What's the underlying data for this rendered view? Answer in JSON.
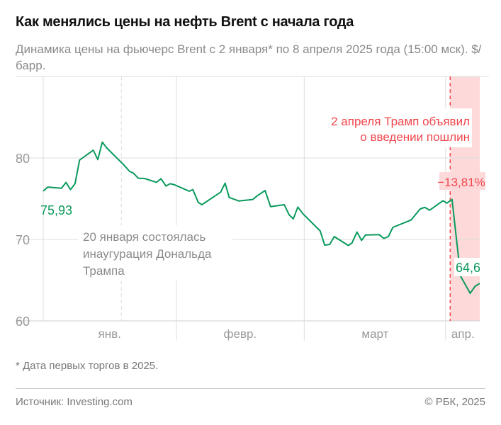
{
  "title": "Как менялись цены на нефть Brent с начала года",
  "subtitle": "Динамика цены на фьючерс Brent с 2 января* по 8 апреля 2025 года (15:00 мск). $/барр.",
  "footnote": "* Дата первых торгов в 2025.",
  "source": "Источник: Investing.com",
  "copyright": "© РБК, 2025",
  "colors": {
    "line": "#0a9a5c",
    "accent": "#f0474c",
    "highlight": "#fdd9d9",
    "grid": "#dddddd",
    "text": "#8a8a8a"
  },
  "chart_data": {
    "type": "line",
    "title": "Как менялись цены на нефть Brent с начала года",
    "xlabel": "",
    "ylabel": "$/барр.",
    "xlim": [
      0,
      96
    ],
    "ylim": [
      60,
      90
    ],
    "x_unit": "days since 2 January 2025",
    "yticks": [
      60,
      70,
      80
    ],
    "ytick_labels": [
      "60",
      "70",
      "80"
    ],
    "month_boundaries": [
      29.3,
      57.4,
      88.5
    ],
    "xtick_labels": [
      {
        "label": "янв.",
        "x": 14.6
      },
      {
        "label": "февр.",
        "x": 43.3
      },
      {
        "label": "март",
        "x": 73
      },
      {
        "label": "апр.",
        "x": 92.3
      }
    ],
    "grid": true,
    "series": [
      {
        "name": "Brent",
        "x": [
          0,
          1,
          4,
          5,
          6,
          7,
          8,
          11,
          12,
          13,
          14,
          17.7,
          19,
          19.8,
          20.9,
          22.3,
          24.9,
          25.9,
          27,
          27.9,
          28.9,
          32.1,
          32.9,
          34.1,
          34.9,
          39,
          40,
          40.9,
          43,
          46.1,
          47,
          48.8,
          50,
          53,
          54.1,
          55,
          56,
          57.1,
          60.9,
          61.9,
          63,
          64,
          67.1,
          67.9,
          69,
          70,
          70.9,
          73.9,
          74.9,
          75.9,
          76.9,
          80.9,
          82.9,
          83.9,
          85,
          87.9,
          88.8,
          89.9,
          91.8,
          93.9,
          95,
          96
        ],
        "y": [
          75.93,
          76.43,
          76.29,
          76.99,
          76.12,
          76.84,
          79.74,
          80.96,
          79.8,
          81.94,
          81.22,
          79.16,
          78.35,
          78.15,
          77.51,
          77.48,
          77.01,
          77.45,
          76.55,
          76.84,
          76.7,
          75.91,
          76.12,
          74.55,
          74.26,
          75.8,
          76.9,
          75.16,
          74.72,
          74.9,
          75.33,
          76.0,
          74.03,
          74.26,
          73.01,
          72.52,
          73.97,
          73.16,
          71.04,
          69.3,
          69.39,
          70.35,
          69.25,
          69.57,
          70.9,
          69.88,
          70.55,
          70.58,
          70.12,
          70.35,
          71.48,
          72.38,
          73.74,
          73.94,
          73.59,
          74.75,
          74.46,
          74.9,
          65.48,
          63.39,
          64.26,
          64.6
        ]
      }
    ],
    "highlight_range": [
      89.5,
      96
    ],
    "events": [
      {
        "x": 17.2,
        "lines": [
          "20 января состоялась",
          "инаугурация Дональда",
          "Трампа"
        ]
      },
      {
        "x": 89.5,
        "lines": [
          "2 апреля Трамп объявил",
          "о введении пошлин"
        ]
      }
    ],
    "annotations": {
      "start_value": "75,93",
      "end_value": "64,6",
      "change": "−13,81%"
    }
  }
}
